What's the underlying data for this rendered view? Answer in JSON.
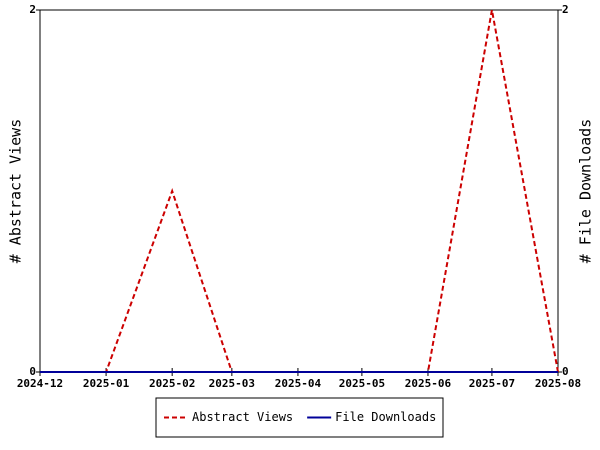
{
  "chart_data": {
    "type": "line",
    "x": [
      "2024-12",
      "2025-01",
      "2025-02",
      "2025-03",
      "2025-04",
      "2025-05",
      "2025-06",
      "2025-07",
      "2025-08"
    ],
    "y_label": "# Abstract Views",
    "y2_label": "# File Downloads",
    "ylim": [
      0,
      2
    ],
    "yticks": [
      0,
      2
    ],
    "y2lim": [
      0,
      2
    ],
    "y2ticks": [
      0,
      2
    ],
    "series": [
      {
        "name": "Abstract Views",
        "color": "#cc0000",
        "dash": true,
        "values": [
          0,
          0,
          1,
          0,
          0,
          0,
          0,
          2,
          0
        ]
      },
      {
        "name": "File Downloads",
        "color": "#000099",
        "dash": false,
        "axis": "y2",
        "values": [
          0,
          0,
          0,
          0,
          0,
          0,
          0,
          0,
          0
        ]
      }
    ],
    "legend": "bottom"
  }
}
